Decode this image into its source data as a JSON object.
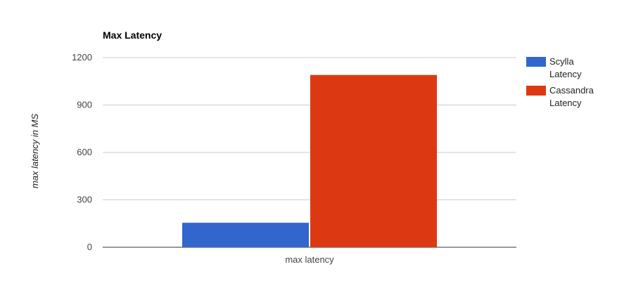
{
  "chart_data": {
    "type": "bar",
    "title": "Max Latency",
    "xlabel": "",
    "ylabel": "max latency in MS",
    "categories": [
      "max latency"
    ],
    "series": [
      {
        "name": "Scylla Latency",
        "name_lines": [
          "Scylla",
          "Latency"
        ],
        "values": [
          155
        ],
        "color": "#3366cc"
      },
      {
        "name": "Cassandra Latency",
        "name_lines": [
          "Cassandra",
          "Latency"
        ],
        "values": [
          1090
        ],
        "color": "#dc3912"
      }
    ],
    "ylim": [
      0,
      1200
    ],
    "yticks": [
      0,
      300,
      600,
      900,
      1200
    ],
    "grid": true,
    "legend_position": "right"
  },
  "colors": {
    "gridline": "#cccccc",
    "baseline": "#333333"
  }
}
